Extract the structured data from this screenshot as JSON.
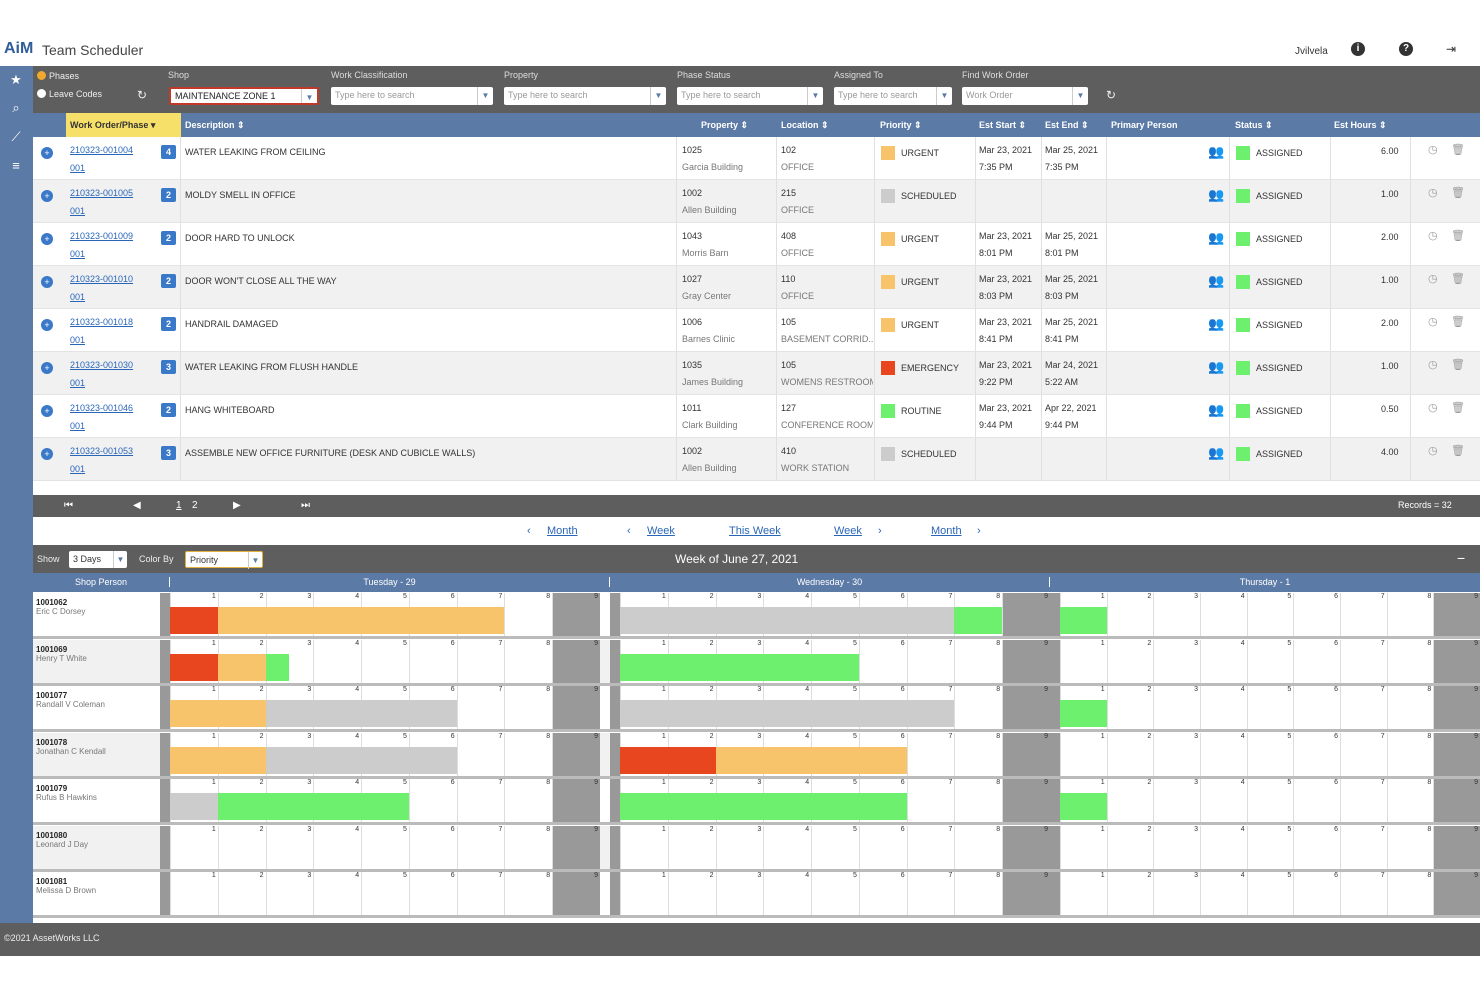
{
  "header": {
    "logo": "AiM",
    "title": "Team Scheduler",
    "user": "Jvilvela",
    "icons": [
      "info-icon",
      "help-icon",
      "logout-icon"
    ]
  },
  "sidebar": {
    "icons": [
      "star-icon",
      "search-icon",
      "chart-icon",
      "list-icon"
    ]
  },
  "filters": {
    "mode_options": [
      {
        "label": "Phases",
        "selected": true
      },
      {
        "label": "Leave Codes",
        "selected": false
      }
    ],
    "shop": {
      "label": "Shop",
      "value": "MAINTENANCE ZONE 1"
    },
    "work_classification": {
      "label": "Work Classification",
      "placeholder": "Type here to search"
    },
    "property": {
      "label": "Property",
      "placeholder": "Type here to search"
    },
    "phase_status": {
      "label": "Phase Status",
      "placeholder": "Type here to search"
    },
    "assigned_to": {
      "label": "Assigned To",
      "placeholder": "Type here to search"
    },
    "find_work_order": {
      "label": "Find Work Order",
      "placeholder": "Work Order"
    }
  },
  "table": {
    "columns": [
      "Work Order/Phase",
      "Description",
      "Property",
      "Location",
      "Priority",
      "Est Start",
      "Est End",
      "Primary Person",
      "Status",
      "Est Hours"
    ],
    "rows": [
      {
        "wo": "210323-001004",
        "phase": "001",
        "count": "4",
        "desc": "WATER LEAKING FROM CEILING",
        "prop": "1025",
        "prop_name": "Garcia Building",
        "loc": "102",
        "loc_name": "OFFICE",
        "priority": "URGENT",
        "pcolor": "#f7c46c",
        "start": "Mar 23, 2021",
        "start_t": "7:35 PM",
        "end": "Mar 25, 2021",
        "end_t": "7:35 PM",
        "status": "ASSIGNED",
        "hours": "6.00"
      },
      {
        "wo": "210323-001005",
        "phase": "001",
        "count": "2",
        "desc": "MOLDY SMELL IN OFFICE",
        "prop": "1002",
        "prop_name": "Allen Building",
        "loc": "215",
        "loc_name": "OFFICE",
        "priority": "SCHEDULED",
        "pcolor": "#cccccc",
        "start": "",
        "start_t": "",
        "end": "",
        "end_t": "",
        "status": "ASSIGNED",
        "hours": "1.00"
      },
      {
        "wo": "210323-001009",
        "phase": "001",
        "count": "2",
        "desc": "DOOR HARD TO UNLOCK",
        "prop": "1043",
        "prop_name": "Morris Barn",
        "loc": "408",
        "loc_name": "OFFICE",
        "priority": "URGENT",
        "pcolor": "#f7c46c",
        "start": "Mar 23, 2021",
        "start_t": "8:01 PM",
        "end": "Mar 25, 2021",
        "end_t": "8:01 PM",
        "status": "ASSIGNED",
        "hours": "2.00"
      },
      {
        "wo": "210323-001010",
        "phase": "001",
        "count": "2",
        "desc": "DOOR WON'T CLOSE ALL THE WAY",
        "prop": "1027",
        "prop_name": "Gray Center",
        "loc": "110",
        "loc_name": "OFFICE",
        "priority": "URGENT",
        "pcolor": "#f7c46c",
        "start": "Mar 23, 2021",
        "start_t": "8:03 PM",
        "end": "Mar 25, 2021",
        "end_t": "8:03 PM",
        "status": "ASSIGNED",
        "hours": "1.00"
      },
      {
        "wo": "210323-001018",
        "phase": "001",
        "count": "2",
        "desc": "HANDRAIL DAMAGED",
        "prop": "1006",
        "prop_name": "Barnes Clinic",
        "loc": "105",
        "loc_name": "BASEMENT CORRID...",
        "priority": "URGENT",
        "pcolor": "#f7c46c",
        "start": "Mar 23, 2021",
        "start_t": "8:41 PM",
        "end": "Mar 25, 2021",
        "end_t": "8:41 PM",
        "status": "ASSIGNED",
        "hours": "2.00"
      },
      {
        "wo": "210323-001030",
        "phase": "001",
        "count": "3",
        "desc": "WATER LEAKING FROM FLUSH HANDLE",
        "prop": "1035",
        "prop_name": "James Building",
        "loc": "105",
        "loc_name": "WOMENS RESTROOM",
        "priority": "EMERGENCY",
        "pcolor": "#e8461f",
        "start": "Mar 23, 2021",
        "start_t": "9:22 PM",
        "end": "Mar 24, 2021",
        "end_t": "5:22 AM",
        "status": "ASSIGNED",
        "hours": "1.00"
      },
      {
        "wo": "210323-001046",
        "phase": "001",
        "count": "2",
        "desc": "HANG WHITEBOARD",
        "prop": "1011",
        "prop_name": "Clark Building",
        "loc": "127",
        "loc_name": "CONFERENCE ROOM",
        "priority": "ROUTINE",
        "pcolor": "#6df06d",
        "start": "Mar 23, 2021",
        "start_t": "9:44 PM",
        "end": "Apr 22, 2021",
        "end_t": "9:44 PM",
        "status": "ASSIGNED",
        "hours": "0.50"
      },
      {
        "wo": "210323-001053",
        "phase": "001",
        "count": "3",
        "desc": "ASSEMBLE NEW OFFICE FURNITURE (DESK AND CUBICLE WALLS)",
        "prop": "1002",
        "prop_name": "Allen Building",
        "loc": "410",
        "loc_name": "WORK STATION",
        "priority": "SCHEDULED",
        "pcolor": "#cccccc",
        "start": "",
        "start_t": "",
        "end": "",
        "end_t": "",
        "status": "ASSIGNED",
        "hours": "4.00"
      }
    ],
    "status_color": "#6df06d"
  },
  "pager": {
    "first": "⏮",
    "prev": "◀",
    "pages": [
      "1",
      "2"
    ],
    "next": "▶",
    "last": "⏭",
    "records": "Records = 32"
  },
  "nav": {
    "prev_month": "Month",
    "prev_week": "Week",
    "this_week": "This Week",
    "next_week": "Week",
    "next_month": "Month"
  },
  "scheduler": {
    "show_label": "Show",
    "show_value": "3 Days",
    "color_by_label": "Color By",
    "color_by_value": "Priority",
    "week_title": "Week of June 27, 2021",
    "collapse": "−",
    "person_header": "Shop Person",
    "days": [
      "Tuesday - 29",
      "Wednesday - 30",
      "Thursday - 1"
    ],
    "hour_labels": [
      "1",
      "2",
      "3",
      "4",
      "5",
      "6",
      "7",
      "8",
      "9"
    ],
    "colors": {
      "emergency": "#e8461f",
      "urgent": "#f7c46c",
      "scheduled": "#cccccc",
      "routine": "#6df06d"
    },
    "people": [
      {
        "id": "1001062",
        "name": "Eric C Dorsey",
        "bars": [
          [
            0,
            0,
            1,
            "emergency"
          ],
          [
            0,
            1,
            7,
            "urgent"
          ],
          [
            1,
            0,
            7,
            "scheduled"
          ],
          [
            1,
            7,
            8,
            "routine"
          ],
          [
            2,
            0,
            1,
            "routine"
          ]
        ]
      },
      {
        "id": "1001069",
        "name": "Henry T White",
        "bars": [
          [
            0,
            0,
            1,
            "emergency"
          ],
          [
            0,
            1,
            2,
            "urgent"
          ],
          [
            0,
            2,
            2.5,
            "routine"
          ],
          [
            1,
            0,
            5,
            "routine"
          ]
        ]
      },
      {
        "id": "1001077",
        "name": "Randall V Coleman",
        "bars": [
          [
            0,
            0,
            2,
            "urgent"
          ],
          [
            0,
            2,
            6,
            "scheduled"
          ],
          [
            1,
            0,
            7,
            "scheduled"
          ],
          [
            2,
            0,
            1,
            "routine"
          ]
        ]
      },
      {
        "id": "1001078",
        "name": "Jonathan C Kendall",
        "bars": [
          [
            0,
            0,
            2,
            "urgent"
          ],
          [
            0,
            2,
            6,
            "scheduled"
          ],
          [
            1,
            0,
            2,
            "emergency"
          ],
          [
            1,
            2,
            6,
            "urgent"
          ]
        ]
      },
      {
        "id": "1001079",
        "name": "Rufus B Hawkins",
        "bars": [
          [
            0,
            0,
            1,
            "scheduled"
          ],
          [
            0,
            1,
            5,
            "routine"
          ],
          [
            1,
            0,
            6,
            "routine"
          ],
          [
            2,
            0,
            1,
            "routine"
          ]
        ]
      },
      {
        "id": "1001080",
        "name": "Leonard J Day",
        "bars": []
      },
      {
        "id": "1001081",
        "name": "Melissa D Brown",
        "bars": []
      }
    ]
  },
  "footer": {
    "copyright": "©2021 AssetWorks LLC"
  }
}
